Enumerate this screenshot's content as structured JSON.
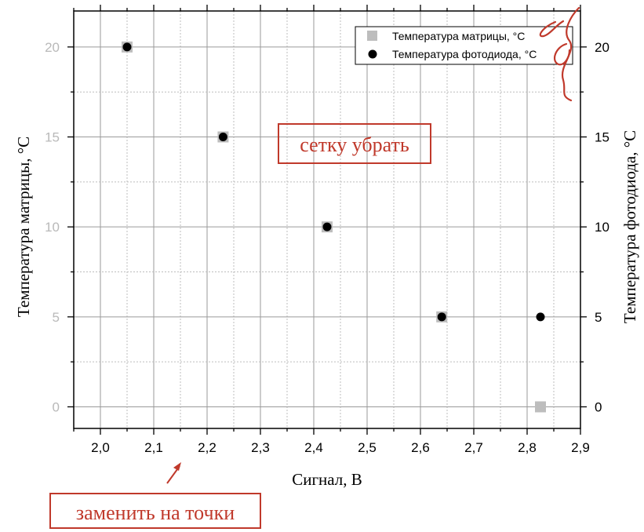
{
  "chart_data": {
    "type": "scatter",
    "title": "",
    "xlabel": "Сигнал, В",
    "ylabel_left": "Температура матрицы, °C",
    "ylabel_right": "Температура фотодиода, °C",
    "xlim": [
      1.95,
      2.9
    ],
    "ylim": [
      -1.2,
      22
    ],
    "x_ticks": [
      "2,0",
      "2,1",
      "2,2",
      "2,3",
      "2,4",
      "2,5",
      "2,6",
      "2,7",
      "2,8",
      "2,9"
    ],
    "y_ticks_left": [
      "0",
      "5",
      "10",
      "15",
      "20"
    ],
    "y_ticks_right": [
      "0",
      "5",
      "10",
      "15",
      "20"
    ],
    "grid": true,
    "legend_position": "top-right",
    "series": [
      {
        "name": "Температура матрицы, °C",
        "marker": "square",
        "color": "#bdbdbd",
        "x": [
          2.05,
          2.23,
          2.425,
          2.64,
          2.825
        ],
        "y": [
          20,
          15,
          10,
          5,
          0
        ]
      },
      {
        "name": "Температура фотодиода, °C",
        "marker": "circle",
        "color": "#000000",
        "x": [
          2.05,
          2.23,
          2.425,
          2.64,
          2.825
        ],
        "y": [
          20,
          15,
          10,
          5,
          5
        ]
      }
    ],
    "annotations": [
      {
        "text": "сетку убрать",
        "color": "#c0392b"
      },
      {
        "text": "заменить на точки",
        "color": "#c0392b"
      }
    ]
  }
}
